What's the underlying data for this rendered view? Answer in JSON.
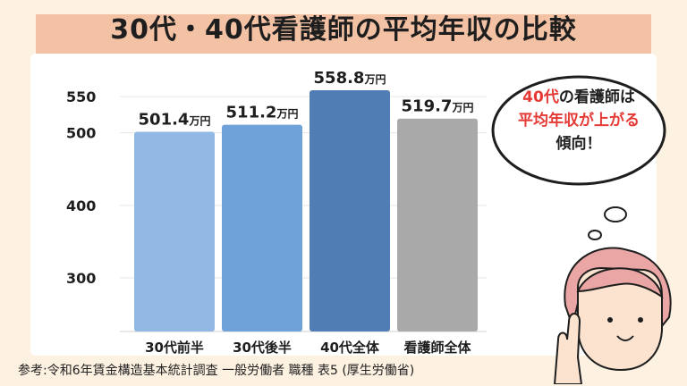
{
  "title": "30代・40代看護師の平均年収の比較",
  "source": "参考:令和6年賃金構造基本統計調査 一般労働者 職種 表5 (厚生労働省)",
  "bubble": {
    "line1_red": "40代",
    "line1_rest": "の看護師は",
    "line2_red": "平均年収が上がる",
    "line3": "傾向！"
  },
  "colors": {
    "background": "#fdf1e2",
    "title_highlight": "#f3c1a3",
    "bar_30_early": "#92b9e3",
    "bar_30_late": "#6fa2d9",
    "bar_40": "#4f7db4",
    "bar_all": "#a9a9a9",
    "accent_red": "#e53935"
  },
  "chart_data": {
    "type": "bar",
    "categories": [
      "30代前半",
      "30代後半",
      "40代全体",
      "看護師全体"
    ],
    "values": [
      501.4,
      511.2,
      558.8,
      519.7
    ],
    "value_labels": [
      "501.4",
      "511.2",
      "558.8",
      "519.7"
    ],
    "value_unit": "万円",
    "yticks": [
      300,
      400,
      500,
      550
    ],
    "ylim": [
      226,
      560
    ],
    "grid": true
  }
}
